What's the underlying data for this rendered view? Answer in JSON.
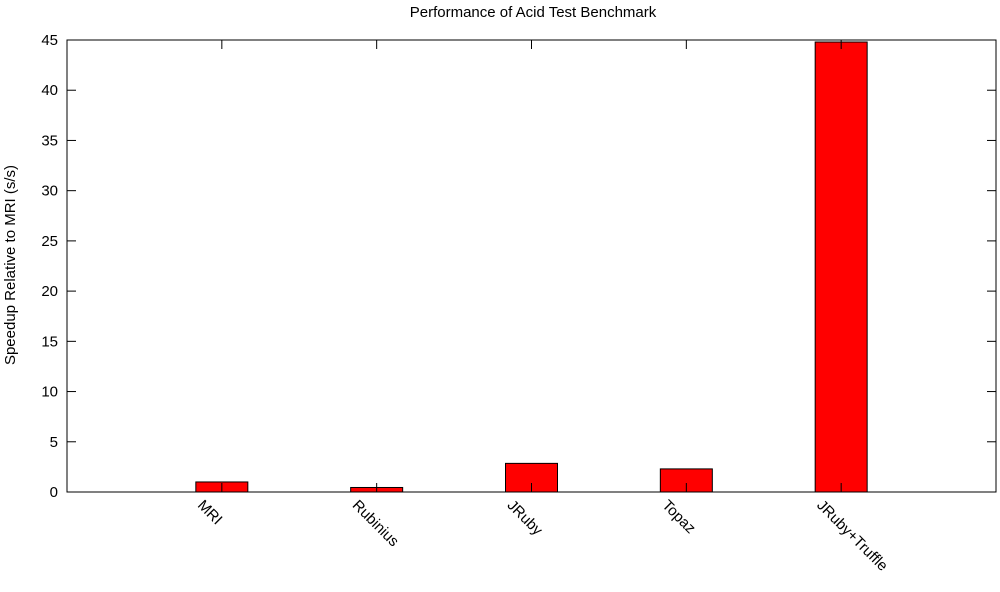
{
  "chart_data": {
    "type": "bar",
    "title": "Performance of Acid Test Benchmark",
    "xlabel": "",
    "ylabel": "Speedup Relative to MRI (s/s)",
    "categories": [
      "MRI",
      "Rubinius",
      "JRuby",
      "Topaz",
      "JRuby+Truffle"
    ],
    "values": [
      1.0,
      0.45,
      2.85,
      2.3,
      44.8
    ],
    "ylim": [
      0,
      45
    ],
    "yticks": [
      "0",
      "5",
      "10",
      "15",
      "20",
      "25",
      "30",
      "35",
      "40",
      "45"
    ],
    "grid": false,
    "legend": "none",
    "bar_color": "#ff0000",
    "bar_stroke": "#000000"
  }
}
